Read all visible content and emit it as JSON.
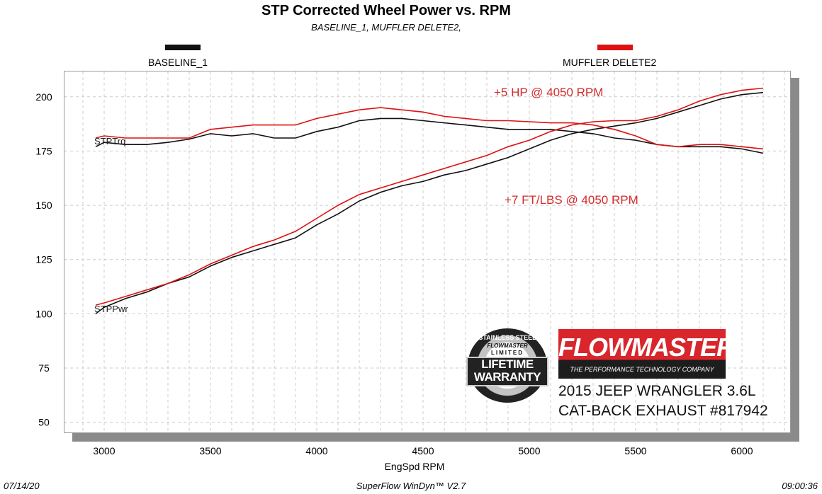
{
  "title": "STP Corrected Wheel Power vs. RPM",
  "subtitle": "BASELINE_1, MUFFLER DELETE2,",
  "colors": {
    "baseline": "#111111",
    "muffler_delete": "#dd1111",
    "annotation": "#d42a2a"
  },
  "footer": {
    "date": "07/14/20",
    "software": "SuperFlow WinDyn™ V2.7",
    "time": "09:00:36"
  },
  "annotations": {
    "hp": "+5 HP @ 4050 RPM",
    "tq": "+7 FT/LBS @ 4050 RPM"
  },
  "branding": {
    "warranty": {
      "top": "STAINLESS STEEL",
      "brand": "FLOWMASTER",
      "limited": "LIMITED",
      "line1": "LIFETIME",
      "line2": "WARRANTY"
    },
    "logo": {
      "name": "FLOWMASTER",
      "tagline": "THE PERFORMANCE TECHNOLOGY COMPANY"
    },
    "vehicle": "2015 JEEP WRANGLER 3.6L",
    "product": "CAT-BACK EXHAUST #817942"
  },
  "chart_data": {
    "type": "line",
    "title": "STP Corrected Wheel Power vs. RPM",
    "xlabel": "EngSpd RPM",
    "ylabel": "",
    "xlim": [
      2810,
      6230
    ],
    "ylim": [
      45,
      212
    ],
    "xticks": [
      3000,
      3500,
      4000,
      4500,
      5000,
      5500,
      6000
    ],
    "yticks": [
      50,
      75,
      100,
      125,
      150,
      175,
      200
    ],
    "grid": true,
    "legend": "top",
    "curve_labels": {
      "torque": "STPTrq",
      "power": "STPPwr"
    },
    "x": [
      2960,
      3000,
      3100,
      3200,
      3300,
      3400,
      3500,
      3600,
      3700,
      3800,
      3900,
      4000,
      4100,
      4200,
      4300,
      4400,
      4500,
      4600,
      4700,
      4800,
      4900,
      5000,
      5100,
      5200,
      5300,
      5400,
      5500,
      5600,
      5700,
      5800,
      5900,
      6000,
      6100
    ],
    "series": [
      {
        "name": "BASELINE_1",
        "quantity": "STPTrq",
        "color": "#111111",
        "values": [
          177,
          179,
          178,
          178,
          179,
          180.5,
          183,
          182,
          183,
          181,
          181,
          184,
          186,
          189,
          190,
          190,
          189,
          188,
          187,
          186,
          185,
          185,
          185,
          184,
          183,
          181,
          180,
          178,
          177,
          177,
          177,
          176,
          174
        ]
      },
      {
        "name": "BASELINE_1",
        "quantity": "STPPwr",
        "color": "#111111",
        "values": [
          100,
          103,
          107,
          110,
          114,
          117,
          122,
          126,
          129,
          132,
          135,
          141,
          146,
          152,
          156,
          159,
          161,
          164,
          166,
          169,
          172,
          176,
          180,
          183,
          185,
          186.5,
          188,
          190,
          193,
          196,
          199,
          201,
          202
        ]
      },
      {
        "name": "MUFFLER DELETE2",
        "quantity": "STPTrq",
        "color": "#dd1111",
        "values": [
          181,
          182,
          181,
          181,
          181,
          181,
          185,
          186,
          187,
          187,
          187,
          190,
          192,
          194,
          195,
          194,
          193,
          191,
          190,
          189,
          189,
          188.5,
          188,
          188,
          187,
          185,
          182,
          178,
          177,
          178,
          178,
          177,
          176
        ]
      },
      {
        "name": "MUFFLER DELETE2",
        "quantity": "STPPwr",
        "color": "#dd1111",
        "values": [
          104,
          105,
          108,
          111,
          114,
          118,
          123,
          127,
          131,
          134,
          138,
          144,
          150,
          155,
          158,
          161,
          164,
          167,
          170,
          173,
          177,
          180,
          184,
          187,
          188.5,
          189,
          189,
          191,
          194,
          198,
          201,
          203,
          204
        ]
      }
    ]
  }
}
